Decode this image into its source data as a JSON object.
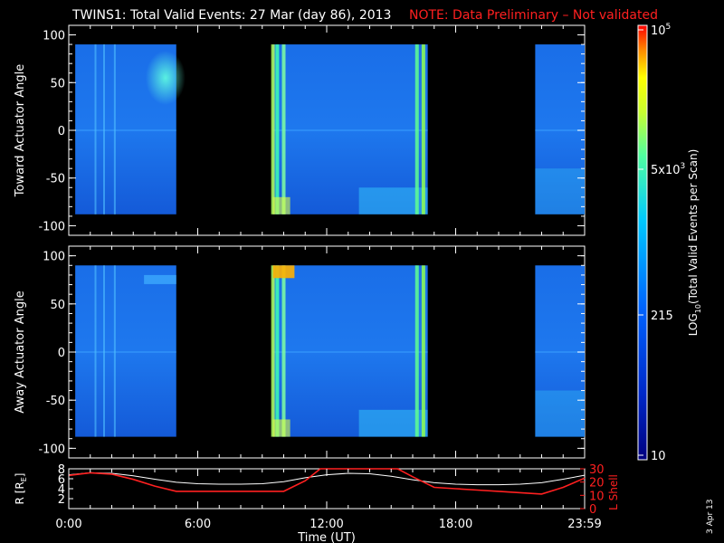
{
  "header": {
    "title": "TWINS1: Total Valid Events: 27 Mar (day  86), 2013",
    "note": "NOTE: Data Preliminary – Not validated",
    "note_color": "#ff2020"
  },
  "footer": {
    "date_stamp": "3 Apr 13"
  },
  "chart_data": [
    {
      "type": "heatmap",
      "title": "",
      "ylabel": "Toward Actuator Angle",
      "ylim": [
        -110,
        110
      ],
      "y_ticks": [
        "100",
        "50",
        "0",
        "-50",
        "-100"
      ],
      "data_y_range": [
        -88,
        90
      ],
      "x_range_hours": [
        0,
        24
      ],
      "data_blocks_hours": [
        [
          0.3,
          5.0
        ],
        [
          9.5,
          16.7
        ],
        [
          21.7,
          24.0
        ]
      ],
      "bright_streaks_hours": [
        9.5,
        9.7,
        10.0,
        16.2,
        16.5
      ],
      "colormap": [
        "#000080",
        "#0050ff",
        "#00c8ff",
        "#90ff60",
        "#ffff00",
        "#ff0000"
      ]
    },
    {
      "type": "heatmap",
      "title": "",
      "ylabel": "Away Actuator Angle",
      "ylim": [
        -110,
        110
      ],
      "y_ticks": [
        "100",
        "50",
        "0",
        "-50",
        "-100"
      ],
      "data_y_range": [
        -88,
        90
      ],
      "x_range_hours": [
        0,
        24
      ],
      "data_blocks_hours": [
        [
          0.3,
          5.0
        ],
        [
          9.5,
          16.7
        ],
        [
          21.7,
          24.0
        ]
      ],
      "bright_streaks_hours": [
        9.5,
        9.7,
        10.0,
        16.2,
        16.5
      ],
      "colormap": [
        "#000080",
        "#0050ff",
        "#00c8ff",
        "#90ff60",
        "#ffff00",
        "#ff0000"
      ]
    },
    {
      "type": "line",
      "ylabel_left": "R [R",
      "ylabel_left_sub": "E",
      "ylabel_left_close": "]",
      "ylabel_right": "L Shell",
      "ylabel_right_color": "#ff2020",
      "left_ticks": [
        "8",
        "6",
        "4",
        "2"
      ],
      "right_ticks": [
        "30",
        "20",
        "10",
        "0"
      ],
      "ylim_left": [
        0,
        8
      ],
      "ylim_right": [
        0,
        30
      ],
      "xlabel": "Time (UT)",
      "x_ticks": [
        "0:00",
        "6:00",
        "12:00",
        "18:00",
        "23:59"
      ],
      "series": [
        {
          "color": "#ffffff",
          "x": [
            0,
            1,
            2,
            3,
            4,
            5,
            6,
            7,
            8,
            9,
            10,
            11,
            12,
            13,
            14,
            15,
            16,
            17,
            18,
            19,
            20,
            21,
            22,
            23,
            24
          ],
          "y": [
            6.8,
            7.2,
            7.1,
            6.6,
            5.9,
            5.3,
            5.0,
            4.9,
            4.9,
            5.0,
            5.4,
            6.2,
            6.8,
            7.1,
            7.0,
            6.5,
            5.8,
            5.2,
            4.9,
            4.8,
            4.8,
            4.9,
            5.2,
            5.9,
            6.7
          ]
        },
        {
          "color": "#ff2020",
          "x": [
            0,
            1,
            2,
            3,
            4,
            5,
            6,
            7,
            8,
            9,
            10,
            11,
            11.7,
            15.3,
            16,
            17,
            18,
            19,
            20,
            21,
            22,
            23,
            24
          ],
          "y": [
            25,
            27,
            26,
            22,
            17,
            13,
            13,
            13,
            13,
            13,
            13,
            21,
            30,
            30,
            24,
            16,
            15,
            14,
            13,
            12,
            11,
            16,
            23
          ]
        }
      ]
    }
  ],
  "colorbar": {
    "label_prefix": "LOG",
    "label_sub": "10",
    "label_suffix": "(Total Valid Events per Scan)",
    "ticks": [
      {
        "base": "10",
        "exp": "5"
      },
      {
        "base": "5x10",
        "exp": "3"
      },
      {
        "base": "215",
        "exp": ""
      },
      {
        "base": "10",
        "exp": ""
      }
    ]
  }
}
